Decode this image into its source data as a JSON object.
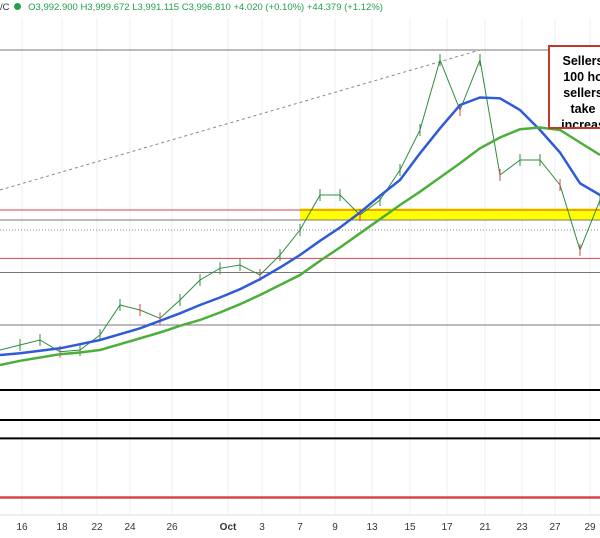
{
  "header": {
    "symbol": "/C",
    "open": "O3,992.900",
    "high": "H3,999.672",
    "low": "L3,991.115",
    "close": "C3,996.810",
    "change": "+4.020 (+0.10%)",
    "change2": "+44.379 (+1.12%)"
  },
  "annotation": {
    "lines": [
      "Sellers",
      "100 ho",
      "sellers",
      "take",
      "increas"
    ]
  },
  "colors": {
    "price": "#2e8b3e",
    "ma_fast": "#2f5bd8",
    "ma_slow": "#4caf3a",
    "support_band": "#ffff00",
    "red_level": "#d9434b",
    "black_level": "#000000"
  },
  "chart_data": {
    "type": "line",
    "ylim": [
      3637,
      4243
    ],
    "x_tick_labels": [
      "16",
      "18",
      "22",
      "24",
      "26",
      "Oct",
      "3",
      "7",
      "9",
      "13",
      "15",
      "17",
      "21",
      "23",
      "27",
      "29"
    ],
    "series": [
      {
        "key": "price",
        "values": [
          3823,
          3829,
          3835,
          3821,
          3823,
          3841,
          3877,
          3871,
          3861,
          3883,
          3907,
          3921,
          3925,
          3913,
          3937,
          3967,
          4009,
          4009,
          3985,
          4003,
          4039,
          4087,
          4171,
          4111,
          4171,
          4033,
          4051,
          4051,
          4021,
          3943,
          4003
        ]
      },
      {
        "key": "ma_fast",
        "values": [
          3817,
          3819,
          3822,
          3825,
          3830,
          3835,
          3842,
          3849,
          3858,
          3867,
          3877,
          3886,
          3896,
          3908,
          3922,
          3937,
          3954,
          3970,
          3988,
          4008,
          4027,
          4059,
          4089,
          4117,
          4126,
          4125,
          4111,
          4087,
          4060,
          4023,
          4009
        ]
      },
      {
        "key": "ma_slow",
        "values": [
          3805,
          3810,
          3814,
          3818,
          3820,
          3823,
          3830,
          3837,
          3844,
          3852,
          3859,
          3868,
          3878,
          3889,
          3901,
          3913,
          3930,
          3946,
          3963,
          3980,
          3997,
          4013,
          4030,
          4047,
          4065,
          4078,
          4088,
          4090,
          4087,
          4072,
          4057
        ]
      }
    ],
    "levels": [
      {
        "price": 4183,
        "color": "gray"
      },
      {
        "price": 3991,
        "color": "red"
      },
      {
        "price": 3979,
        "color": "gray"
      },
      {
        "price": 3967,
        "color": "dotted"
      },
      {
        "price": 3933,
        "color": "red"
      },
      {
        "price": 3916,
        "color": "gray"
      },
      {
        "price": 3853,
        "color": "gray"
      },
      {
        "price": 3775,
        "color": "black"
      },
      {
        "price": 3739,
        "color": "black"
      },
      {
        "price": 3717,
        "color": "black"
      },
      {
        "price": 3646,
        "color": "red"
      }
    ],
    "support_band": [
      3979,
      3993
    ]
  }
}
